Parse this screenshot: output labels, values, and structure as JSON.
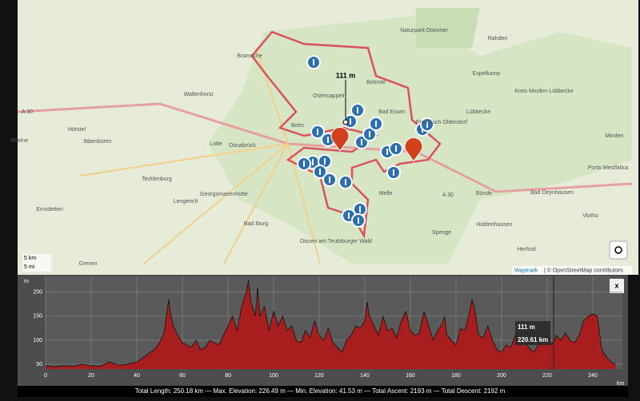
{
  "map": {
    "places": [
      "Bramsche",
      "Wallenhorst",
      "Hörstel",
      "Ibbenbüren",
      "Rheine",
      "Lotte",
      "Osnabrück",
      "Belm",
      "Tecklenburg",
      "Lengerich",
      "Georgsmarienhütte",
      "Bad Iburg",
      "Emsdetten",
      "Greven",
      "Ostercappeln",
      "Bohmte",
      "Bad Essen",
      "Preußisch Oldendorf",
      "Lübbecke",
      "Espelkamp",
      "Rahden",
      "Naturpark Dümmer",
      "Kreis Minden-Lübbecke",
      "Melle",
      "Bünde",
      "Bad Oeynhausen",
      "Spenge",
      "Hiddenhausen",
      "Herford",
      "Vlotho",
      "Porta Westfalica",
      "Minden",
      "Dissen am Teutoburger Wald",
      "A 30",
      "A 30"
    ],
    "marker_label": "111 m",
    "scale": [
      "5 km",
      "5 mi"
    ],
    "attribution_link": "Waymark",
    "attribution": "| © OpenStreetMap contributors"
  },
  "chart_data": {
    "type": "area",
    "y_axis_label": "m",
    "x_axis_label": "km",
    "color": "#a81e1e",
    "x": [
      0,
      4,
      8,
      12,
      16,
      20,
      24,
      28,
      32,
      36,
      40,
      44,
      48,
      50,
      52,
      53,
      54,
      55,
      56,
      58,
      60,
      62,
      64,
      66,
      68,
      70,
      72,
      74,
      76,
      78,
      80,
      82,
      84,
      86,
      88,
      89,
      90,
      92,
      93,
      94,
      96,
      98,
      100,
      102,
      104,
      106,
      108,
      110,
      112,
      114,
      116,
      118,
      120,
      122,
      124,
      126,
      128,
      130,
      132,
      134,
      136,
      138,
      140,
      141,
      142,
      144,
      146,
      148,
      150,
      152,
      154,
      156,
      158,
      160,
      162,
      164,
      166,
      168,
      170,
      172,
      174,
      175,
      176,
      178,
      180,
      182,
      184,
      186,
      187,
      188,
      190,
      192,
      194,
      196,
      198,
      200,
      202,
      204,
      206,
      208,
      210,
      212,
      214,
      216,
      218,
      220,
      222,
      224,
      226,
      228,
      230,
      232,
      234,
      236,
      238,
      240,
      242,
      244,
      246,
      248,
      250
    ],
    "values": [
      47,
      45,
      47,
      46,
      50,
      47,
      46,
      55,
      48,
      50,
      55,
      68,
      82,
      95,
      115,
      150,
      185,
      150,
      130,
      110,
      95,
      90,
      85,
      100,
      80,
      85,
      100,
      95,
      90,
      110,
      130,
      150,
      120,
      170,
      200,
      225,
      180,
      150,
      210,
      150,
      170,
      120,
      160,
      130,
      150,
      120,
      130,
      100,
      95,
      120,
      105,
      140,
      110,
      100,
      125,
      95,
      85,
      75,
      100,
      110,
      130,
      125,
      140,
      180,
      150,
      130,
      110,
      150,
      120,
      125,
      105,
      140,
      160,
      120,
      110,
      115,
      160,
      130,
      100,
      120,
      135,
      150,
      110,
      100,
      90,
      125,
      120,
      160,
      185,
      170,
      110,
      105,
      130,
      100,
      80,
      75,
      90,
      85,
      110,
      90,
      95,
      85,
      75,
      90,
      100,
      111,
      90,
      110,
      100,
      115,
      100,
      95,
      110,
      140,
      150,
      155,
      150,
      80,
      65,
      55,
      50
    ],
    "xlim": [
      0,
      253
    ],
    "ylim": [
      40,
      233
    ],
    "xticks": [
      0,
      20,
      40,
      60,
      80,
      100,
      120,
      140,
      160,
      180,
      200,
      220,
      240
    ],
    "yticks": [
      50,
      100,
      150,
      200
    ],
    "grid": true,
    "tooltip": [
      "111 m",
      "220.61 km"
    ],
    "close": "x",
    "summary": "Total Length: 250.18 km — Max. Elevation: 226.49 m — Min. Elevation: 41.53 m — Total Ascent: 2193 m — Total Descent: 2192 m"
  }
}
